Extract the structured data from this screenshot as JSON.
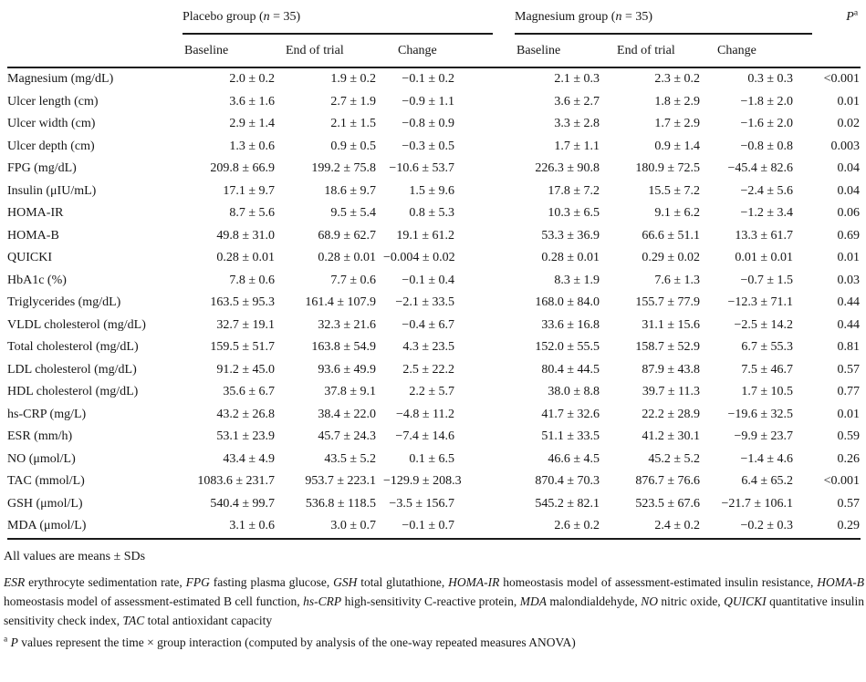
{
  "table": {
    "groups": [
      {
        "name_segments": [
          {
            "t": "Placebo group (",
            "style": ""
          },
          {
            "t": "n",
            "style": "i"
          },
          {
            "t": " = 35)",
            "style": ""
          }
        ],
        "columns": [
          "Baseline",
          "End of trial",
          "Change"
        ]
      },
      {
        "name_segments": [
          {
            "t": "Magnesium group (",
            "style": ""
          },
          {
            "t": "n",
            "style": "i"
          },
          {
            "t": " = 35)",
            "style": ""
          }
        ],
        "columns": [
          "Baseline",
          "End of trial",
          "Change"
        ]
      }
    ],
    "p_header_segments": [
      {
        "t": "P",
        "style": "i"
      },
      {
        "t": "a",
        "style": "sup"
      }
    ],
    "rows": [
      {
        "label": "Magnesium (mg/dL)",
        "values": [
          "2.0 ± 0.2",
          "1.9 ± 0.2",
          "−0.1 ± 0.2",
          "2.1 ± 0.3",
          "2.3 ± 0.2",
          "0.3 ± 0.3"
        ],
        "p": "<0.001"
      },
      {
        "label": "Ulcer length (cm)",
        "values": [
          "3.6 ± 1.6",
          "2.7 ± 1.9",
          "−0.9 ± 1.1",
          "3.6 ± 2.7",
          "1.8 ± 2.9",
          "−1.8 ± 2.0"
        ],
        "p": "0.01"
      },
      {
        "label": "Ulcer width (cm)",
        "values": [
          "2.9 ± 1.4",
          "2.1 ± 1.5",
          "−0.8 ± 0.9",
          "3.3 ± 2.8",
          "1.7 ± 2.9",
          "−1.6 ± 2.0"
        ],
        "p": "0.02"
      },
      {
        "label": "Ulcer depth (cm)",
        "values": [
          "1.3 ± 0.6",
          "0.9 ± 0.5",
          "−0.3 ± 0.5",
          "1.7 ± 1.1",
          "0.9 ± 1.4",
          "−0.8 ± 0.8"
        ],
        "p": "0.003"
      },
      {
        "label": "FPG (mg/dL)",
        "values": [
          "209.8 ± 66.9",
          "199.2 ± 75.8",
          "−10.6 ± 53.7",
          "226.3 ± 90.8",
          "180.9 ± 72.5",
          "−45.4 ± 82.6"
        ],
        "p": "0.04"
      },
      {
        "label": "Insulin (μIU/mL)",
        "values": [
          "17.1 ± 9.7",
          "18.6 ± 9.7",
          "1.5 ± 9.6",
          "17.8 ± 7.2",
          "15.5 ± 7.2",
          "−2.4 ± 5.6"
        ],
        "p": "0.04"
      },
      {
        "label": "HOMA-IR",
        "values": [
          "8.7 ± 5.6",
          "9.5 ± 5.4",
          "0.8 ± 5.3",
          "10.3 ± 6.5",
          "9.1 ± 6.2",
          "−1.2 ± 3.4"
        ],
        "p": "0.06"
      },
      {
        "label": "HOMA-B",
        "values": [
          "49.8 ± 31.0",
          "68.9 ± 62.7",
          "19.1 ± 61.2",
          "53.3 ± 36.9",
          "66.6 ± 51.1",
          "13.3 ± 61.7"
        ],
        "p": "0.69"
      },
      {
        "label": "QUICKI",
        "values": [
          "0.28 ± 0.01",
          "0.28 ± 0.01",
          "−0.004 ± 0.02",
          "0.28 ± 0.01",
          "0.29 ± 0.02",
          "0.01 ± 0.01"
        ],
        "p": "0.01"
      },
      {
        "label": "HbA1c (%)",
        "values": [
          "7.8 ± 0.6",
          "7.7 ± 0.6",
          "−0.1 ± 0.4",
          "8.3 ± 1.9",
          "7.6 ± 1.3",
          "−0.7 ± 1.5"
        ],
        "p": "0.03"
      },
      {
        "label": "Triglycerides (mg/dL)",
        "values": [
          "163.5 ± 95.3",
          "161.4 ± 107.9",
          "−2.1 ± 33.5",
          "168.0 ± 84.0",
          "155.7 ± 77.9",
          "−12.3 ± 71.1"
        ],
        "p": "0.44"
      },
      {
        "label": "VLDL cholesterol (mg/dL)",
        "values": [
          "32.7 ± 19.1",
          "32.3 ± 21.6",
          "−0.4 ± 6.7",
          "33.6 ± 16.8",
          "31.1 ± 15.6",
          "−2.5 ± 14.2"
        ],
        "p": "0.44"
      },
      {
        "label": "Total cholesterol (mg/dL)",
        "values": [
          "159.5 ± 51.7",
          "163.8 ± 54.9",
          "4.3 ± 23.5",
          "152.0 ± 55.5",
          "158.7 ± 52.9",
          "6.7 ± 55.3"
        ],
        "p": "0.81"
      },
      {
        "label": "LDL cholesterol (mg/dL)",
        "values": [
          "91.2 ± 45.0",
          "93.6 ± 49.9",
          "2.5 ± 22.2",
          "80.4 ± 44.5",
          "87.9 ± 43.8",
          "7.5 ± 46.7"
        ],
        "p": "0.57"
      },
      {
        "label": "HDL cholesterol (mg/dL)",
        "values": [
          "35.6 ± 6.7",
          "37.8 ± 9.1",
          "2.2 ± 5.7",
          "38.0 ± 8.8",
          "39.7 ± 11.3",
          "1.7 ± 10.5"
        ],
        "p": "0.77"
      },
      {
        "label": "hs-CRP (mg/L)",
        "values": [
          "43.2 ± 26.8",
          "38.4 ± 22.0",
          "−4.8 ± 11.2",
          "41.7 ± 32.6",
          "22.2 ± 28.9",
          "−19.6 ± 32.5"
        ],
        "p": "0.01"
      },
      {
        "label": "ESR (mm/h)",
        "values": [
          "53.1 ± 23.9",
          "45.7 ± 24.3",
          "−7.4 ± 14.6",
          "51.1 ± 33.5",
          "41.2 ± 30.1",
          "−9.9 ± 23.7"
        ],
        "p": "0.59"
      },
      {
        "label": "NO (μmol/L)",
        "values": [
          "43.4 ± 4.9",
          "43.5 ± 5.2",
          "0.1 ± 6.5",
          "46.6 ± 4.5",
          "45.2 ± 5.2",
          "−1.4 ± 4.6"
        ],
        "p": "0.26"
      },
      {
        "label": "TAC (mmol/L)",
        "values": [
          "1083.6 ± 231.7",
          "953.7 ± 223.1",
          "−129.9 ± 208.3",
          "870.4 ± 70.3",
          "876.7 ± 76.6",
          "6.4 ± 65.2"
        ],
        "p": "<0.001"
      },
      {
        "label": "GSH (μmol/L)",
        "values": [
          "540.4 ± 99.7",
          "536.8 ± 118.5",
          "−3.5 ± 156.7",
          "545.2 ± 82.1",
          "523.5 ± 67.6",
          "−21.7 ± 106.1"
        ],
        "p": "0.57"
      },
      {
        "label": "MDA (μmol/L)",
        "values": [
          "3.1 ± 0.6",
          "3.0 ± 0.7",
          "−0.1 ± 0.7",
          "2.6 ± 0.2",
          "2.4 ± 0.2",
          "−0.2 ± 0.3"
        ],
        "p": "0.29"
      }
    ]
  },
  "footnotes": {
    "means_note": "All values are means ± SDs",
    "abbreviations_segments": [
      {
        "t": "ESR",
        "style": "i"
      },
      {
        "t": " erythrocyte sedimentation rate, ",
        "style": ""
      },
      {
        "t": "FPG",
        "style": "i"
      },
      {
        "t": " fasting plasma glucose, ",
        "style": ""
      },
      {
        "t": "GSH",
        "style": "i"
      },
      {
        "t": " total glutathione, ",
        "style": ""
      },
      {
        "t": "HOMA-IR",
        "style": "i"
      },
      {
        "t": " homeostasis model of assessment-estimated insulin resistance, ",
        "style": ""
      },
      {
        "t": "HOMA-B",
        "style": "i"
      },
      {
        "t": " homeostasis model of assessment-estimated B cell function, ",
        "style": ""
      },
      {
        "t": "hs-CRP",
        "style": "i"
      },
      {
        "t": " high-sensitivity C-reactive protein, ",
        "style": ""
      },
      {
        "t": "MDA",
        "style": "i"
      },
      {
        "t": " malondialdehyde, ",
        "style": ""
      },
      {
        "t": "NO",
        "style": "i"
      },
      {
        "t": " nitric oxide, ",
        "style": ""
      },
      {
        "t": "QUICKI",
        "style": "i"
      },
      {
        "t": " quantitative insulin sensitivity check index, ",
        "style": ""
      },
      {
        "t": "TAC",
        "style": "i"
      },
      {
        "t": " total antioxidant capacity",
        "style": ""
      }
    ],
    "p_note_segments": [
      {
        "t": "a",
        "style": "sup"
      },
      {
        "t": " ",
        "style": ""
      },
      {
        "t": "P",
        "style": "i"
      },
      {
        "t": " values represent the time × group interaction (computed by analysis of the one-way repeated measures ANOVA)",
        "style": ""
      }
    ]
  }
}
